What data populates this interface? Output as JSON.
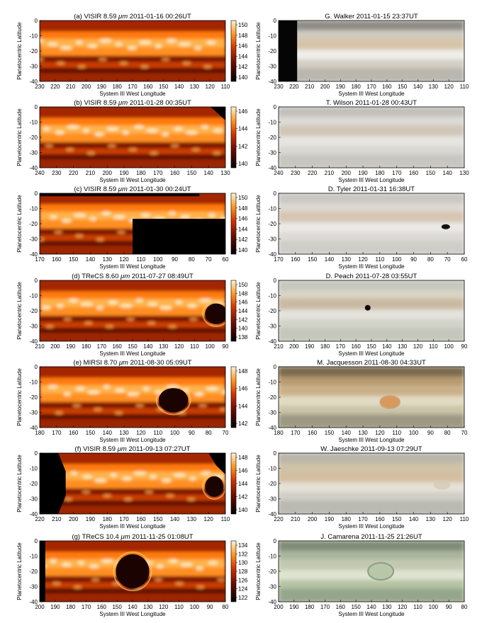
{
  "figure": {
    "ylabel": "Planetocentric Latitude",
    "xlabel": "System III West Longitude",
    "lat_ticks": [
      "0",
      "-10",
      "-20",
      "-30",
      "-40"
    ],
    "lat_ticks_g": [
      "0",
      "-10",
      "-20",
      "-30",
      "-40"
    ],
    "micron": "μm",
    "rows": [
      {
        "left_prefix": "(a) VISIR 8.59 ",
        "left_suffix": " 2011-01-16 00:26UT",
        "right_title": "G. Walker 2011-01-15 23:37UT",
        "lon_ticks": [
          "230",
          "220",
          "210",
          "200",
          "190",
          "180",
          "170",
          "160",
          "150",
          "140",
          "130",
          "120",
          "110"
        ],
        "cb_ticks": [
          "150",
          "148",
          "146",
          "144",
          "142",
          "140"
        ]
      },
      {
        "left_prefix": "(b) VISIR 8.59 ",
        "left_suffix": " 2011-01-28 00:35UT",
        "right_title": "T. Wilson 2011-01-28 00:43UT",
        "lon_ticks": [
          "240",
          "230",
          "220",
          "210",
          "200",
          "190",
          "180",
          "170",
          "160",
          "150",
          "140",
          "130"
        ],
        "cb_ticks": [
          "146",
          "144",
          "142",
          "140"
        ]
      },
      {
        "left_prefix": "(c) VISIR 8.59 ",
        "left_suffix": " 2011-01-30 00:24UT",
        "right_title": "D. Tyler 2011-01-31 16:38UT",
        "lon_ticks": [
          "170",
          "160",
          "150",
          "140",
          "130",
          "120",
          "110",
          "100",
          "90",
          "80",
          "70",
          "60"
        ],
        "cb_ticks": [
          "150",
          "148",
          "146",
          "144",
          "142",
          "140"
        ]
      },
      {
        "left_prefix": "(d) TReCS 8.60 ",
        "left_suffix": " 2011-07-27 08:49UT",
        "right_title": "D. Peach 2011-07-28 03:55UT",
        "lon_ticks": [
          "210",
          "200",
          "190",
          "180",
          "170",
          "160",
          "150",
          "140",
          "130",
          "120",
          "110",
          "100",
          "90"
        ],
        "cb_ticks": [
          "150",
          "148",
          "146",
          "144",
          "142",
          "140",
          "138"
        ]
      },
      {
        "left_prefix": "(e) MIRSI 8.70 ",
        "left_suffix": " 2011-08-30 05:09UT",
        "right_title": "M. Jacquesson 2011-08-30 04:33UT",
        "lon_ticks": [
          "180",
          "170",
          "160",
          "150",
          "140",
          "130",
          "120",
          "110",
          "100",
          "90",
          "80",
          "70"
        ],
        "cb_ticks": [
          "148",
          "146",
          "144",
          "142"
        ]
      },
      {
        "left_prefix": "(f) VISIR 8.59 ",
        "left_suffix": " 2011-09-13 07:27UT",
        "right_title": "W. Jaeschke 2011-09-13 07:29UT",
        "lon_ticks": [
          "220",
          "210",
          "200",
          "190",
          "180",
          "170",
          "160",
          "150",
          "140",
          "130",
          "120",
          "110"
        ],
        "cb_ticks": [
          "148",
          "146",
          "144",
          "142",
          "140"
        ]
      },
      {
        "left_prefix": "(g) TReCS 10.4 ",
        "left_suffix": " 2011-11-25 01:08UT",
        "right_title": "J. Camarena 2011-11-25 21:26UT",
        "lon_ticks": [
          "200",
          "190",
          "180",
          "170",
          "160",
          "150",
          "140",
          "130",
          "120",
          "110",
          "100",
          "90",
          "80"
        ],
        "cb_ticks": [
          "134",
          "132",
          "130",
          "128",
          "126",
          "124",
          "122"
        ]
      }
    ]
  }
}
